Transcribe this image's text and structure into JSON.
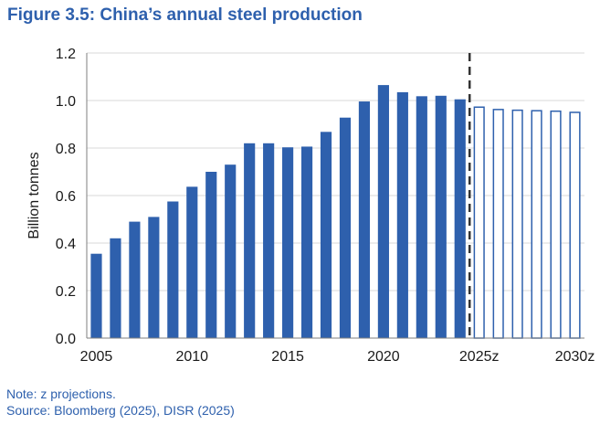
{
  "figure": {
    "title": "Figure 3.5: China’s annual steel production",
    "note": "Note: z projections.",
    "source": "Source: Bloomberg (2025), DISR (2025)"
  },
  "colors": {
    "title": "#2e60ad",
    "bar_fill": "#2e60ad",
    "projection_outline": "#2e60ad",
    "divider": "#333333"
  },
  "chart_data": {
    "type": "bar",
    "title": "",
    "xlabel": "",
    "ylabel": "Billion tonnes",
    "ylim": [
      0,
      1.2
    ],
    "yticks": [
      "0.0",
      "0.2",
      "0.4",
      "0.6",
      "0.8",
      "1.0",
      "1.2"
    ],
    "grid": "horizontal",
    "categories": [
      "2005",
      "2006",
      "2007",
      "2008",
      "2009",
      "2010",
      "2011",
      "2012",
      "2013",
      "2014",
      "2015",
      "2016",
      "2017",
      "2018",
      "2019",
      "2020",
      "2021",
      "2022",
      "2023",
      "2024",
      "2025z",
      "2026z",
      "2027z",
      "2028z",
      "2029z",
      "2030z"
    ],
    "x_tick_labels": [
      "2005",
      "",
      "",
      "",
      "",
      "2010",
      "",
      "",
      "",
      "",
      "2015",
      "",
      "",
      "",
      "",
      "2020",
      "",
      "",
      "",
      "",
      "2025z",
      "",
      "",
      "",
      "",
      "2030z"
    ],
    "values": [
      0.355,
      0.42,
      0.49,
      0.51,
      0.575,
      0.637,
      0.7,
      0.73,
      0.82,
      0.82,
      0.803,
      0.806,
      0.868,
      0.928,
      0.996,
      1.065,
      1.035,
      1.018,
      1.02,
      1.005,
      0.975,
      0.965,
      0.962,
      0.96,
      0.958,
      0.953
    ],
    "projected": [
      false,
      false,
      false,
      false,
      false,
      false,
      false,
      false,
      false,
      false,
      false,
      false,
      false,
      false,
      false,
      false,
      false,
      false,
      false,
      false,
      true,
      true,
      true,
      true,
      true,
      true
    ],
    "divider_after_category": "2024"
  }
}
